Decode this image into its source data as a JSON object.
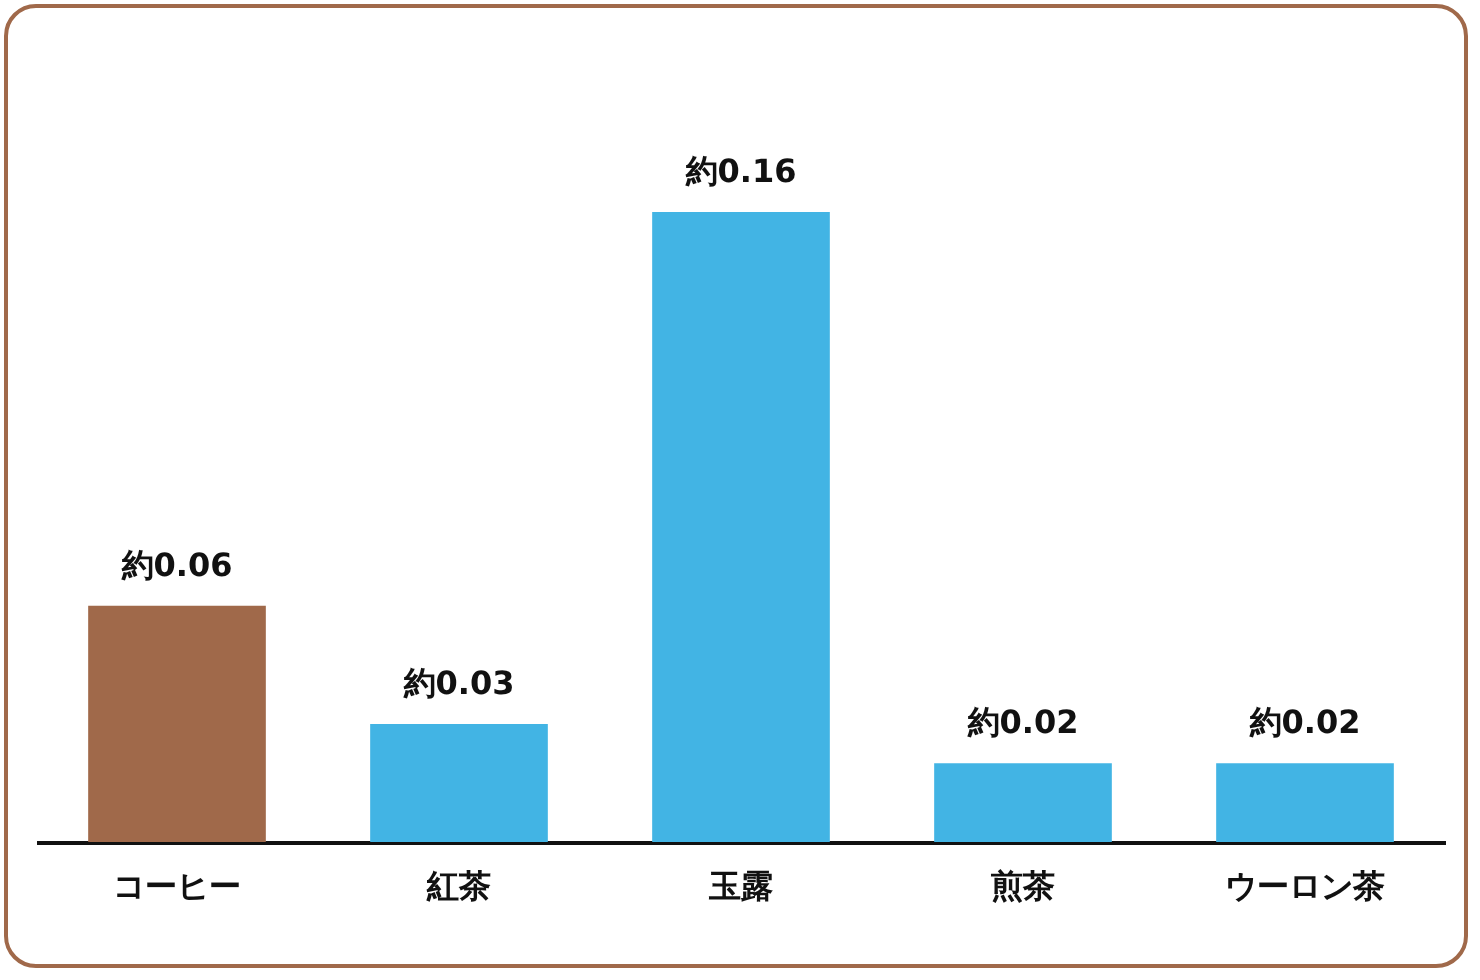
{
  "chart_data": {
    "type": "bar",
    "categories": [
      "コーヒー",
      "紅茶",
      "玉露",
      "煎茶",
      "ウーロン茶"
    ],
    "values": [
      0.06,
      0.03,
      0.16,
      0.02,
      0.02
    ],
    "colors": [
      "#a0694a",
      "#42b4e4",
      "#42b4e4",
      "#42b4e4",
      "#42b4e4"
    ],
    "value_labels": [
      "約0.06",
      "約0.03",
      "約0.16",
      "約0.02",
      "約0.02"
    ]
  }
}
